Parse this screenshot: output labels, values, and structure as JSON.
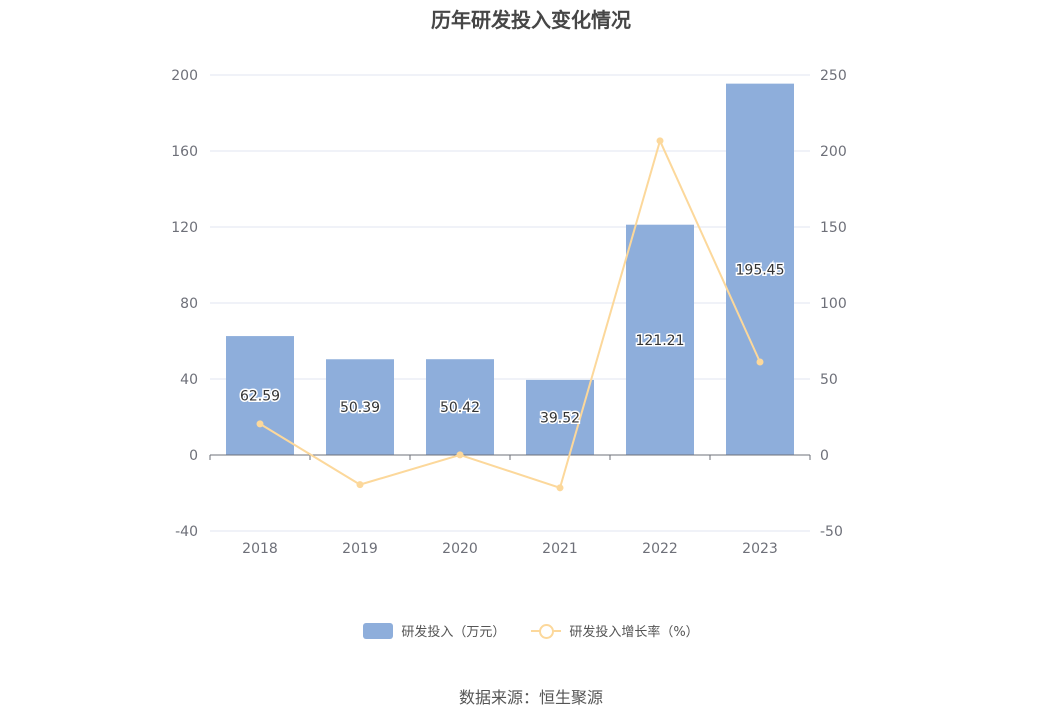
{
  "chart_data": {
    "type": "bar",
    "title": "历年研发投入变化情况",
    "categories": [
      "2018",
      "2019",
      "2020",
      "2021",
      "2022",
      "2023"
    ],
    "series": [
      {
        "name": "研发投入（万元）",
        "type": "bar",
        "axis": "left",
        "values": [
          62.59,
          50.39,
          50.42,
          39.52,
          121.21,
          195.45
        ],
        "labels": [
          "62.59",
          "50.39",
          "50.42",
          "39.52",
          "121.21",
          "195.45"
        ]
      },
      {
        "name": "研发投入增长率（%）",
        "type": "line",
        "axis": "right",
        "values": [
          20.5,
          -19.5,
          0.06,
          -21.6,
          206.7,
          61.2
        ]
      }
    ],
    "y_left": {
      "range": [
        -40,
        200
      ],
      "ticks": [
        "200",
        "160",
        "120",
        "80",
        "40",
        "0",
        "-40"
      ]
    },
    "y_right": {
      "range": [
        -50,
        250
      ],
      "ticks": [
        "250",
        "200",
        "150",
        "100",
        "50",
        "0",
        "-50"
      ]
    },
    "grid": true,
    "legend_position": "bottom",
    "colors": {
      "bar": "#8eaedb",
      "line": "#fcd89b",
      "grid": "#e0e6f1",
      "axis": "#6e7079"
    }
  },
  "footer": {
    "source": "数据来源：恒生聚源"
  }
}
